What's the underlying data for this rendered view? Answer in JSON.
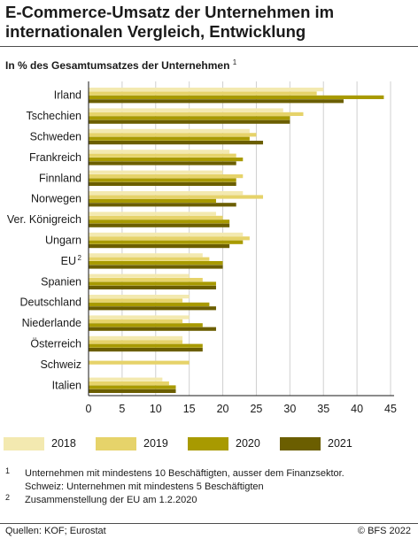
{
  "header": {
    "title": "E-Commerce-Umsatz der Unternehmen im internationalen Vergleich, Entwicklung",
    "subtitle": "In % des Gesamtumsatzes der Unternehmen",
    "subtitle_mark": "1"
  },
  "chart_data": {
    "type": "bar",
    "orientation": "horizontal",
    "categories": [
      "Irland",
      "Tschechien",
      "Schweden",
      "Frankreich",
      "Finnland",
      "Norwegen",
      "Ver. Königreich",
      "Ungarn",
      "EU",
      "Spanien",
      "Deutschland",
      "Niederlande",
      "Österreich",
      "Schweiz",
      "Italien"
    ],
    "category_marks": [
      "",
      "",
      "",
      "",
      "",
      "",
      "",
      "",
      "2",
      "",
      "",
      "",
      "",
      "",
      ""
    ],
    "series": [
      {
        "name": "2018",
        "color": "#f3e9b0",
        "values": [
          35,
          29,
          24,
          21,
          20,
          23,
          19,
          23,
          17,
          15,
          15,
          15,
          14,
          null,
          11
        ]
      },
      {
        "name": "2019",
        "color": "#e6d36a",
        "values": [
          34,
          32,
          25,
          22,
          23,
          26,
          20,
          24,
          18,
          17,
          14,
          14,
          14,
          15,
          12
        ]
      },
      {
        "name": "2020",
        "color": "#a89a00",
        "values": [
          44,
          30,
          24,
          23,
          22,
          19,
          21,
          23,
          20,
          19,
          18,
          17,
          17,
          null,
          13
        ]
      },
      {
        "name": "2021",
        "color": "#6b5e00",
        "values": [
          38,
          30,
          26,
          22,
          22,
          22,
          21,
          21,
          20,
          19,
          19,
          19,
          17,
          null,
          13
        ]
      }
    ],
    "xlim": [
      0,
      45
    ],
    "xticks": [
      0,
      5,
      10,
      15,
      20,
      25,
      30,
      35,
      40,
      45
    ],
    "grid": true,
    "legend_position": "bottom"
  },
  "notes": [
    {
      "mark": "1",
      "lines": [
        "Unternehmen mit mindestens 10 Beschäftigten, ausser dem Finanzsektor.",
        "Schweiz: Unternehmen mit mindestens 5 Beschäftigten"
      ]
    },
    {
      "mark": "2",
      "lines": [
        "Zusammenstellung der EU am 1.2.2020"
      ]
    }
  ],
  "footer": {
    "source": "Quellen: KOF; Eurostat",
    "copyright": "© BFS 2022"
  }
}
